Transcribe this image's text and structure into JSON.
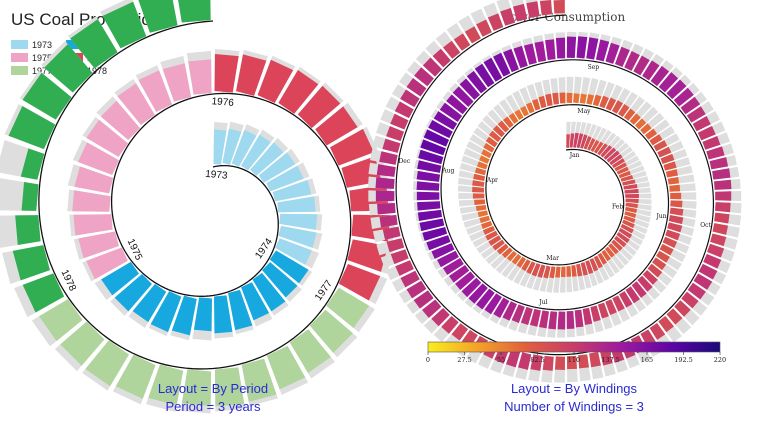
{
  "chart_data": [
    {
      "type": "radial-bar",
      "title": "US Coal Production",
      "legend": [
        {
          "label": "1973",
          "color": "#9ed9ef"
        },
        {
          "label": "1974",
          "color": "#17a8e0"
        },
        {
          "label": "1975",
          "color": "#efa3c5"
        },
        {
          "label": "1976",
          "color": "#dc4459"
        },
        {
          "label": "1977",
          "color": "#b0d59c"
        },
        {
          "label": "1978",
          "color": "#31ad52"
        }
      ],
      "legend_position": "top-left",
      "ring_labels": [
        "1973",
        "1974",
        "1975",
        "1976",
        "1977",
        "1978"
      ],
      "layout": {
        "text": "Layout = By Period",
        "text2": "Period = 3 years"
      },
      "series": [
        {
          "name": "1973",
          "values": [
            0.82,
            0.83,
            0.85,
            0.86,
            0.86,
            0.87,
            0.85,
            0.88,
            0.89,
            0.88,
            0.86,
            0.82
          ]
        },
        {
          "name": "1974",
          "values": [
            0.9,
            0.86,
            0.88,
            0.84,
            0.9,
            0.88,
            0.78,
            0.88,
            0.9,
            0.84,
            0.86,
            0.82
          ]
        },
        {
          "name": "1975",
          "values": [
            0.9,
            0.89,
            0.9,
            0.88,
            0.84,
            0.87,
            0.89,
            0.86,
            0.88,
            0.87,
            0.82,
            0.8
          ]
        },
        {
          "name": "1976",
          "values": [
            0.88,
            0.89,
            0.9,
            0.91,
            0.9,
            0.86,
            0.9,
            0.84,
            0.89,
            0.88,
            0.85,
            0.82
          ]
        },
        {
          "name": "1977",
          "values": [
            0.84,
            0.86,
            0.85,
            0.86,
            0.9,
            0.88,
            0.82,
            0.84,
            0.86,
            0.88,
            0.83,
            0.8
          ]
        },
        {
          "name": "1978",
          "values": [
            0.78,
            0.74,
            0.55,
            0.35,
            0.4,
            0.9,
            0.92,
            0.9,
            0.92,
            0.88,
            0.9,
            0.86
          ]
        }
      ],
      "max_fill_color": "#dddddd"
    },
    {
      "type": "radial-bar",
      "title": "Power Consumption",
      "colorbar": {
        "ticks": [
          "0",
          "27.5",
          "55",
          "82.5",
          "110",
          "137.5",
          "165",
          "192.5",
          "220"
        ],
        "min": 0,
        "max": 220,
        "colors": [
          "#f8ee1f",
          "#f5a327",
          "#e0603e",
          "#c73c6b",
          "#9d1a9f",
          "#5e05a6",
          "#1a0a7a"
        ]
      },
      "month_labels": [
        "Jan",
        "Feb",
        "Mar",
        "Apr",
        "May",
        "Jun",
        "Jul",
        "Aug",
        "Sep",
        "Oct",
        "Nov",
        "Dec"
      ],
      "layout": {
        "text": "Layout = By Windings",
        "text2": "Number of Windings = 3"
      },
      "windings": 3,
      "values_description": "daily consumption, low in spring, high in late summer",
      "seasonal_profile": [
        95,
        88,
        80,
        72,
        70,
        82,
        120,
        175,
        150,
        110,
        100,
        125
      ]
    }
  ]
}
